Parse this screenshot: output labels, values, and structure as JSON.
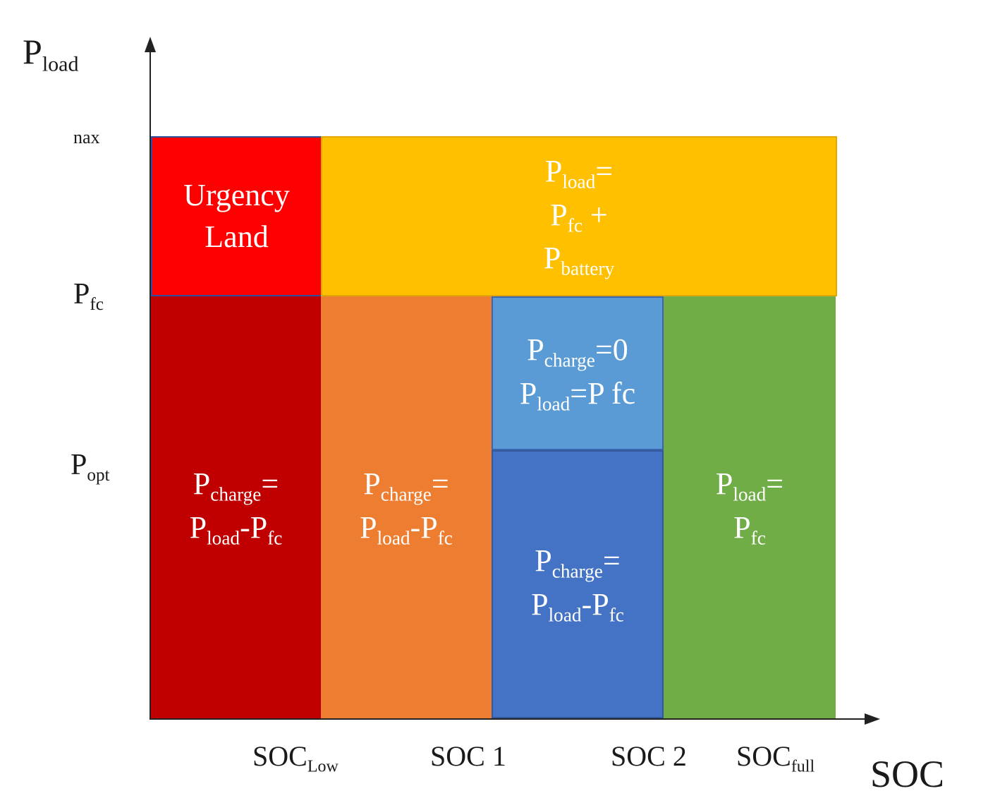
{
  "axes": {
    "y_title": {
      "main": "P",
      "sub": "load"
    },
    "x_title": "SOC",
    "y_ticks": {
      "max": "nax",
      "fc": {
        "main": "P",
        "sub": "fc"
      },
      "opt": {
        "main": "P",
        "sub": "opt"
      }
    },
    "x_ticks": {
      "low": {
        "main": "SOC",
        "sub": "Low"
      },
      "soc1": "SOC 1",
      "soc2": "SOC 2",
      "full": {
        "main": "SOC",
        "sub": "full"
      }
    }
  },
  "regions": {
    "urgency": {
      "color": "#ff0000",
      "line1": "Urgency",
      "line2": "Land"
    },
    "battery_assist": {
      "color": "#ffc000",
      "l1_main": "P",
      "l1_sub": "load",
      "l1_tail": "=",
      "l2_main": "P",
      "l2_sub": "fc",
      "l2_tail": " +",
      "l3_main": "P",
      "l3_sub": "battery"
    },
    "low_charge": {
      "color": "#c00000",
      "l1_main": "P",
      "l1_sub": "charge",
      "l1_tail": "=",
      "l2_main": "P",
      "l2_sub": "load",
      "l2_mid": "-P",
      "l2_sub2": "fc"
    },
    "mid_charge": {
      "color": "#ed7d31",
      "l1_main": "P",
      "l1_sub": "charge",
      "l1_tail": "=",
      "l2_main": "P",
      "l2_sub": "load",
      "l2_mid": "-P",
      "l2_sub2": "fc"
    },
    "no_charge": {
      "color": "#5b9bd5",
      "l1_main": "P",
      "l1_sub": "charge",
      "l1_tail": "=0",
      "l2_main": "P",
      "l2_sub": "load",
      "l2_tail": "=P fc"
    },
    "blue_charge": {
      "color": "#4472c4",
      "l1_main": "P",
      "l1_sub": "charge",
      "l1_tail": "=",
      "l2_main": "P",
      "l2_sub": "load",
      "l2_mid": "-P",
      "l2_sub2": "fc"
    },
    "full": {
      "color": "#70ad47",
      "l1_main": "P",
      "l1_sub": "load",
      "l1_tail": "=",
      "l2_main": "P",
      "l2_sub": "fc"
    }
  }
}
